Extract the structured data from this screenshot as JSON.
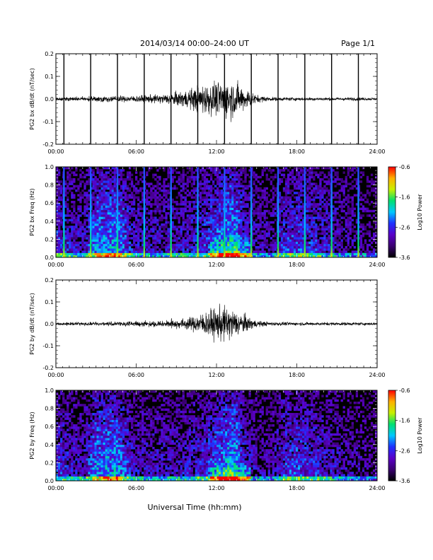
{
  "header": {
    "title": "2014/03/14  00:00–24:00 UT",
    "page": "Page 1/1"
  },
  "colors": {
    "colorbar_stops": [
      "#000000",
      "#3a0070",
      "#5a00c8",
      "#2030ff",
      "#00c8ff",
      "#00e070",
      "#c8f000",
      "#ffb000",
      "#ff0000"
    ]
  },
  "chart_data": [
    {
      "type": "line",
      "panel": "bx-waveform",
      "ylabel": "PG2 bx dB/dt (nT/sec)",
      "ylim": [
        -0.2,
        0.2
      ],
      "yticks": [
        "-0.2",
        "-0.1",
        "0.0",
        "0.1",
        "0.2"
      ],
      "xlim_hours": [
        0,
        24
      ],
      "xticks": [
        "00:00",
        "06:00",
        "12:00",
        "18:00",
        "24:00"
      ],
      "spike_hours": [
        0.6,
        2.6,
        4.6,
        6.6,
        8.6,
        10.6,
        12.6,
        14.6,
        16.6,
        18.6,
        20.6,
        22.6
      ],
      "envelope": {
        "hours": [
          0,
          3,
          6,
          8,
          9,
          10,
          11,
          12,
          12.5,
          13,
          13.5,
          14,
          14.5,
          15,
          16,
          18,
          20,
          22,
          24
        ],
        "amplitude": [
          0.005,
          0.008,
          0.01,
          0.014,
          0.02,
          0.03,
          0.045,
          0.05,
          0.055,
          0.06,
          0.05,
          0.035,
          0.025,
          0.012,
          0.006,
          0.005,
          0.005,
          0.005,
          0.004
        ]
      }
    },
    {
      "type": "heatmap",
      "panel": "bx-spectrogram",
      "ylabel": "PG2 bx Freq (Hz)",
      "ylim": [
        0.0,
        1.0
      ],
      "yticks": [
        "0.0",
        "0.2",
        "0.4",
        "0.6",
        "0.8",
        "1.0"
      ],
      "xlim_hours": [
        0,
        24
      ],
      "xticks": [
        "00:00",
        "06:00",
        "12:00",
        "18:00",
        "24:00"
      ],
      "colorbar": {
        "label": "Log10 Power",
        "range": [
          -3.6,
          -0.6
        ],
        "ticks": [
          "-0.6",
          "-1.6",
          "-2.6",
          "-3.6"
        ]
      },
      "spike_hours": [
        0.6,
        2.6,
        4.6,
        6.6,
        8.6,
        10.6,
        12.6,
        14.6,
        16.6,
        18.6,
        20.6,
        22.6
      ]
    },
    {
      "type": "line",
      "panel": "by-waveform",
      "ylabel": "PG2 by dB/dt (nT/sec)",
      "ylim": [
        -0.2,
        0.2
      ],
      "yticks": [
        "-0.2",
        "-0.1",
        "0.0",
        "0.1",
        "0.2"
      ],
      "xlim_hours": [
        0,
        24
      ],
      "xticks": [
        "00:00",
        "06:00",
        "12:00",
        "18:00",
        "24:00"
      ],
      "envelope": {
        "hours": [
          0,
          3,
          6,
          8,
          9,
          10,
          11,
          12,
          12.5,
          13,
          13.5,
          14,
          14.5,
          15,
          16,
          18,
          20,
          22,
          24
        ],
        "amplitude": [
          0.004,
          0.006,
          0.008,
          0.01,
          0.014,
          0.02,
          0.035,
          0.05,
          0.055,
          0.05,
          0.04,
          0.03,
          0.02,
          0.01,
          0.006,
          0.005,
          0.005,
          0.005,
          0.004
        ]
      }
    },
    {
      "type": "heatmap",
      "panel": "by-spectrogram",
      "ylabel": "PG2 by Freq (Hz)",
      "ylim": [
        0.0,
        1.0
      ],
      "yticks": [
        "0.0",
        "0.2",
        "0.4",
        "0.6",
        "0.8",
        "1.0"
      ],
      "xlim_hours": [
        0,
        24
      ],
      "xticks": [
        "00:00",
        "06:00",
        "12:00",
        "18:00",
        "24:00"
      ],
      "colorbar": {
        "label": "Log10 Power",
        "range": [
          -3.6,
          -0.6
        ],
        "ticks": [
          "-0.6",
          "-1.6",
          "-2.6",
          "-3.6"
        ]
      }
    }
  ],
  "footer": {
    "xlabel": "Universal Time (hh:mm)"
  }
}
